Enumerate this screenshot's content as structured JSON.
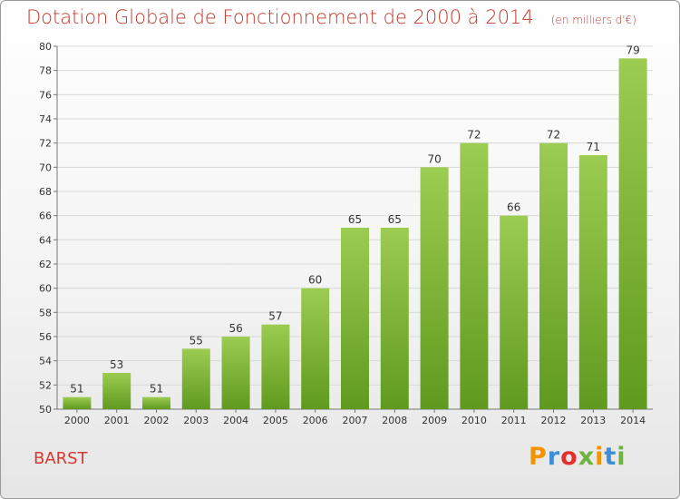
{
  "header": {
    "title": "Dotation Globale de Fonctionnement de 2000 à 2014",
    "subtitle": "(en milliers d'€)"
  },
  "footer": {
    "commune": "BARST",
    "logo_text": "Proxiti",
    "logo_icon": "proxiti-logo"
  },
  "colors": {
    "title": "#c0392b",
    "bar_top": "#9ccc52",
    "bar_bottom": "#5f9a1e",
    "grid": "#d9d9d9"
  },
  "chart_data": {
    "type": "bar",
    "title": "Dotation Globale de Fonctionnement de 2000 à 2014",
    "subtitle": "(en milliers d'€)",
    "xlabel": "",
    "ylabel": "",
    "categories": [
      "2000",
      "2001",
      "2002",
      "2003",
      "2004",
      "2005",
      "2006",
      "2007",
      "2008",
      "2009",
      "2010",
      "2011",
      "2012",
      "2013",
      "2014"
    ],
    "values": [
      51,
      53,
      51,
      55,
      56,
      57,
      60,
      65,
      65,
      70,
      72,
      66,
      72,
      71,
      79
    ],
    "ylim": [
      50,
      80
    ],
    "yticks": [
      50,
      52,
      54,
      56,
      58,
      60,
      62,
      64,
      66,
      68,
      70,
      72,
      74,
      76,
      78,
      80
    ],
    "grid": true,
    "data_labels": true
  }
}
